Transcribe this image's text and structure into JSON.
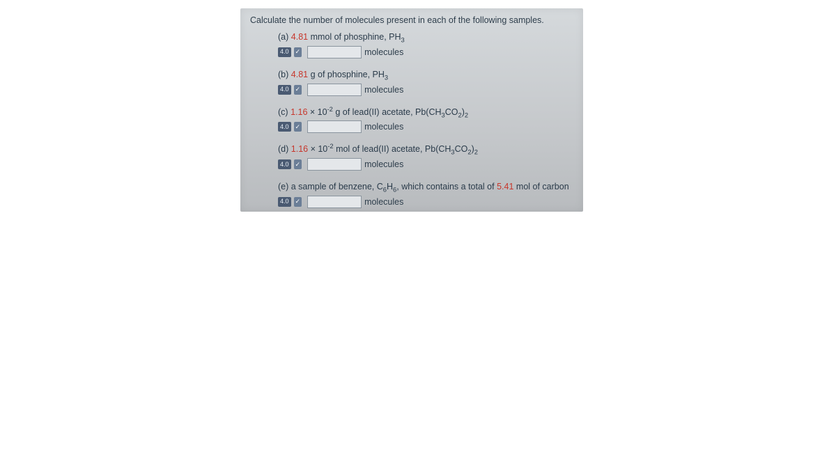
{
  "header": "Calculate the number of molecules present in each of the following samples.",
  "badge_label": "4.0",
  "checkmark": "✓",
  "unit": "molecules",
  "items": {
    "a": {
      "label": "(a)",
      "value": "4.81",
      "post1": " mmol of phosphine, PH",
      "sub1": "3"
    },
    "b": {
      "label": "(b)",
      "value": "4.81",
      "post1": " g of phosphine, PH",
      "sub1": "3"
    },
    "c": {
      "label": "(c)",
      "value": "1.16",
      "times": " × 10",
      "sup": "-2",
      "post1": " g of lead(II) acetate, Pb(CH",
      "sub1": "3",
      "post2": "CO",
      "sub2": "2",
      "post3": ")",
      "sub3": "2"
    },
    "d": {
      "label": "(d)",
      "value": "1.16",
      "times": " × 10",
      "sup": "-2",
      "post1": " mol of lead(II) acetate, Pb(CH",
      "sub1": "3",
      "post2": "CO",
      "sub2": "2",
      "post3": ")",
      "sub3": "2"
    },
    "e": {
      "label": "(e)",
      "pre": " a sample of benzene, C",
      "sub1": "6",
      "mid1": "H",
      "sub2": "6",
      "mid2": ", which contains a total of ",
      "value": "5.41",
      "post": " mol of carbon"
    }
  }
}
